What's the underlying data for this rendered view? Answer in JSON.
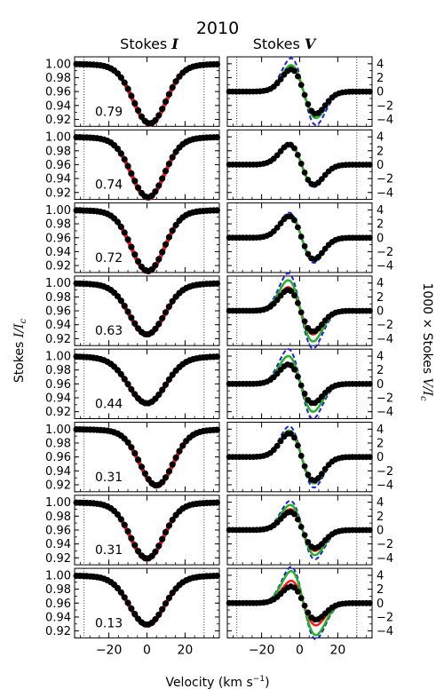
{
  "chart_data": {
    "type": "line",
    "title": "2010",
    "panel_titles": [
      "Stokes ",
      "Stokes "
    ],
    "panel_title_symbols": [
      "I",
      "V"
    ],
    "ylabel_left_text": "Stokes ",
    "ylabel_left_symbol": "I/I",
    "ylabel_left_sub": "c",
    "ylabel_right_text": "1000 × Stokes ",
    "ylabel_right_symbol": "V/I",
    "ylabel_right_sub": "c",
    "xlabel_text": "Velocity (km s",
    "xlabel_sup": "−1",
    "xlabel_tail": ")",
    "x_range": [
      -38,
      38
    ],
    "x_ticks": [
      -20,
      0,
      20
    ],
    "x_tick_labels": [
      "−20",
      "0",
      "20"
    ],
    "vertical_dotted_lines_x": [
      -33,
      30
    ],
    "stokes_I": {
      "y_range": [
        0.91,
        1.01
      ],
      "y_ticks": [
        1.0,
        0.98,
        0.96,
        0.94,
        0.92
      ],
      "y_tick_labels": [
        "1.00",
        "0.98",
        "0.96",
        "0.94",
        "0.92"
      ]
    },
    "stokes_V": {
      "y_range": [
        -5,
        5
      ],
      "y_ticks": [
        4,
        2,
        0,
        -2,
        -4
      ],
      "y_tick_labels": [
        "4",
        "2",
        "0",
        "−2",
        "−4"
      ]
    },
    "series_colors": {
      "observed": "#000000",
      "model_red": "#ff1a1a",
      "model_green": "#22b422",
      "model_blue": "#1f1fdd"
    },
    "rows": [
      {
        "phase": "0.79",
        "I_center": 1.5,
        "I_depth": 0.082,
        "I_width": 8.5,
        "V_obs_amp": 3.2,
        "V_green_amp": 3.8,
        "V_blue_amp": 4.8,
        "V_red_amp": 3.4,
        "V_center": 2.0
      },
      {
        "phase": "0.74",
        "I_center": 0.5,
        "I_depth": 0.083,
        "I_width": 8.5,
        "V_obs_amp": 2.9,
        "V_green_amp": 3.0,
        "V_blue_amp": 3.2,
        "V_red_amp": 2.9,
        "V_center": 1.0
      },
      {
        "phase": "0.72",
        "I_center": 0.5,
        "I_depth": 0.084,
        "I_width": 8.5,
        "V_obs_amp": 3.1,
        "V_green_amp": 3.3,
        "V_blue_amp": 3.6,
        "V_red_amp": 3.2,
        "V_center": 1.0
      },
      {
        "phase": "0.63",
        "I_center": 0.0,
        "I_depth": 0.07,
        "I_width": 9.0,
        "V_obs_amp": 3.0,
        "V_green_amp": 4.4,
        "V_blue_amp": 5.4,
        "V_red_amp": 3.4,
        "V_center": 0.5
      },
      {
        "phase": "0.44",
        "I_center": 0.0,
        "I_depth": 0.064,
        "I_width": 9.5,
        "V_obs_amp": 2.8,
        "V_green_amp": 4.0,
        "V_blue_amp": 5.0,
        "V_red_amp": 3.0,
        "V_center": 0.5
      },
      {
        "phase": "0.31",
        "I_center": 5.0,
        "I_depth": 0.077,
        "I_width": 8.5,
        "V_obs_amp": 3.4,
        "V_green_amp": 3.8,
        "V_blue_amp": 4.4,
        "V_red_amp": 3.5,
        "V_center": 1.0
      },
      {
        "phase": "0.31",
        "I_center": 0.0,
        "I_depth": 0.077,
        "I_width": 8.5,
        "V_obs_amp": 2.6,
        "V_green_amp": 3.6,
        "V_blue_amp": 4.2,
        "V_red_amp": 3.0,
        "V_center": 1.5
      },
      {
        "phase": "0.13",
        "I_center": 0.0,
        "I_depth": 0.067,
        "I_width": 9.0,
        "V_obs_amp": 2.4,
        "V_green_amp": 4.6,
        "V_blue_amp": 5.2,
        "V_red_amp": 3.2,
        "V_center": 2.0
      }
    ]
  }
}
